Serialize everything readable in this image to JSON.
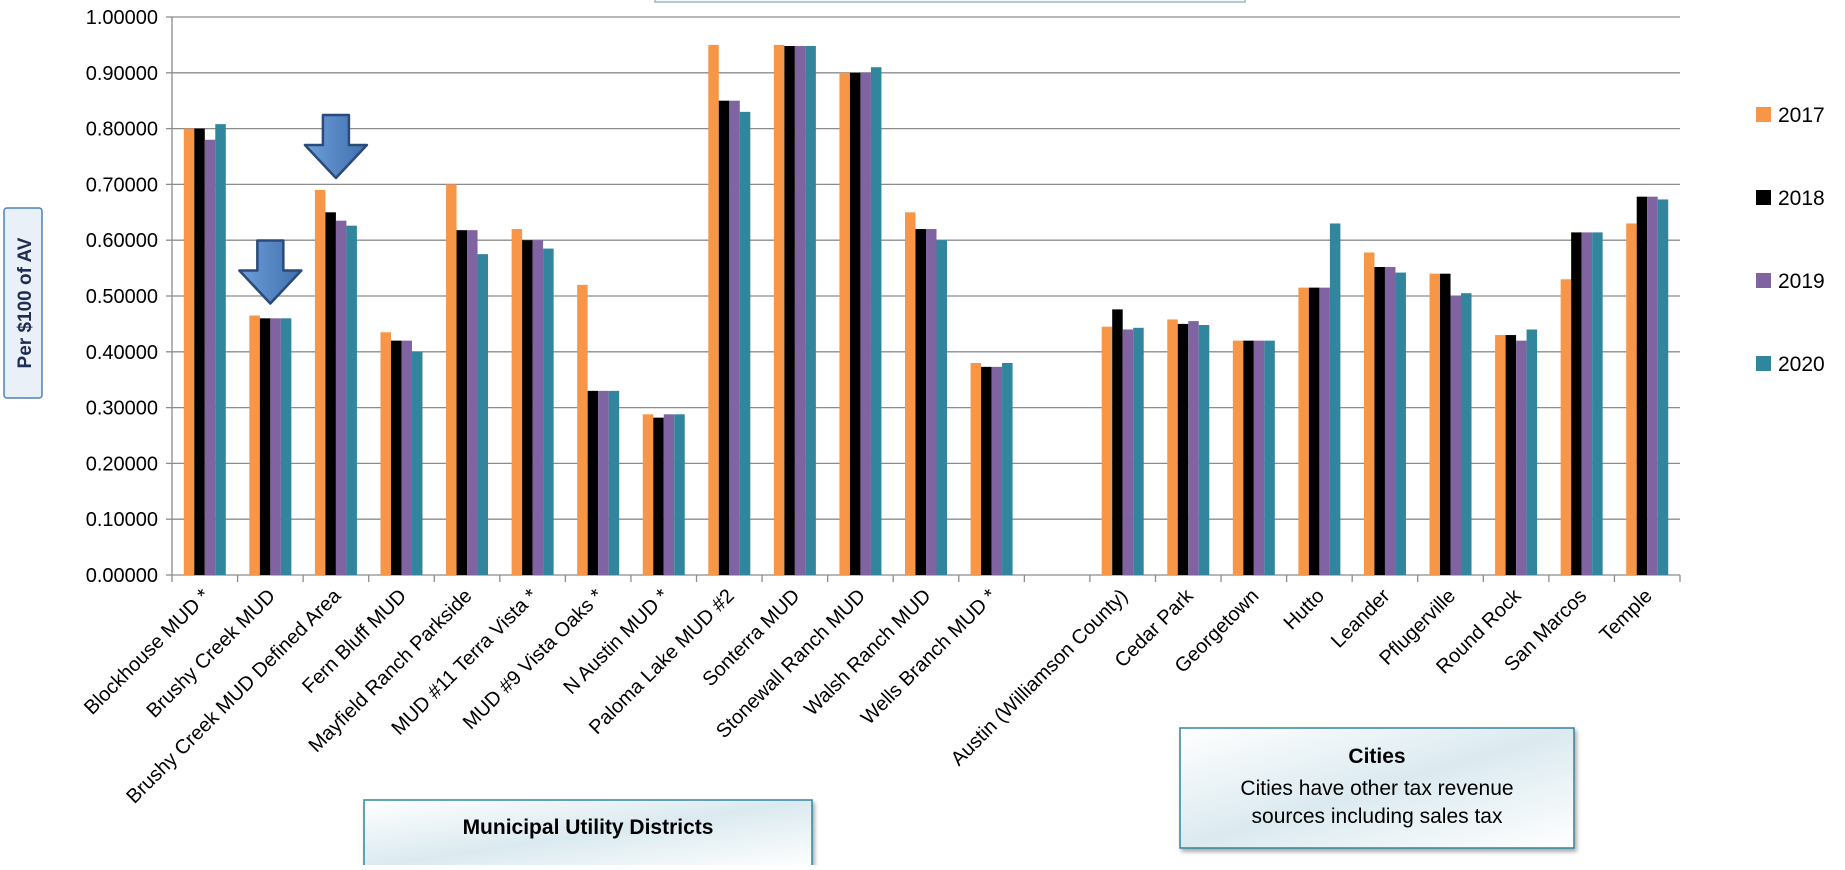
{
  "chart_data": {
    "type": "bar",
    "title": "",
    "xlabel": "",
    "ylabel": "Per $100 of AV",
    "ylim": [
      0,
      1.0
    ],
    "yticks": [
      "0.00000",
      "0.10000",
      "0.20000",
      "0.30000",
      "0.40000",
      "0.50000",
      "0.60000",
      "0.70000",
      "0.80000",
      "0.90000",
      "1.00000"
    ],
    "grid": true,
    "legend_position": "right",
    "categories": [
      "Blockhouse MUD *",
      "Brushy Creek MUD",
      "Brushy Creek MUD Defined Area",
      "Fern Bluff MUD",
      "Mayfield Ranch Parkside",
      "MUD #11 Terra Vista *",
      "MUD #9 Vista Oaks *",
      "N Austin MUD *",
      "Paloma Lake MUD #2",
      "Sonterra MUD",
      "Stonewall Ranch MUD",
      "Walsh Ranch MUD",
      "Wells Branch MUD *",
      "",
      "Austin (Williamson County)",
      "Cedar Park",
      "Georgetown",
      "Hutto",
      "Leander",
      "Pflugerville",
      "Round Rock",
      "San Marcos",
      "Temple"
    ],
    "series": [
      {
        "name": "2017",
        "color": "#F79646",
        "values": [
          0.8,
          0.465,
          0.69,
          0.435,
          0.7,
          0.62,
          0.52,
          0.288,
          0.95,
          0.95,
          0.9,
          0.65,
          0.38,
          null,
          0.445,
          0.458,
          0.42,
          0.515,
          0.578,
          0.54,
          0.43,
          0.53,
          0.63
        ]
      },
      {
        "name": "2018",
        "color": "#000000",
        "values": [
          0.8,
          0.46,
          0.65,
          0.42,
          0.618,
          0.6,
          0.33,
          0.282,
          0.85,
          0.948,
          0.9,
          0.62,
          0.373,
          null,
          0.476,
          0.45,
          0.42,
          0.515,
          0.552,
          0.54,
          0.43,
          0.614,
          0.678
        ]
      },
      {
        "name": "2019",
        "color": "#8064A2",
        "values": [
          0.78,
          0.46,
          0.635,
          0.42,
          0.618,
          0.6,
          0.33,
          0.288,
          0.85,
          0.948,
          0.9,
          0.62,
          0.373,
          null,
          0.44,
          0.455,
          0.42,
          0.515,
          0.552,
          0.5,
          0.42,
          0.614,
          0.678
        ]
      },
      {
        "name": "2020",
        "color": "#31859C",
        "values": [
          0.808,
          0.46,
          0.626,
          0.4,
          0.575,
          0.585,
          0.33,
          0.288,
          0.83,
          0.948,
          0.91,
          0.6,
          0.38,
          null,
          0.443,
          0.448,
          0.42,
          0.63,
          0.542,
          0.505,
          0.44,
          0.614,
          0.673
        ]
      }
    ],
    "annotations": [
      {
        "kind": "arrow",
        "target_category": "Brushy Creek MUD",
        "direction": "down",
        "color": "#4F81BD"
      },
      {
        "kind": "arrow",
        "target_category": "Brushy Creek MUD Defined Area",
        "direction": "down",
        "color": "#4F81BD"
      }
    ],
    "group_boxes": [
      {
        "title": "Municipal Utility Districts",
        "text": ""
      },
      {
        "title": "Cities",
        "text": "Cities have other tax revenue sources including sales tax"
      }
    ]
  }
}
